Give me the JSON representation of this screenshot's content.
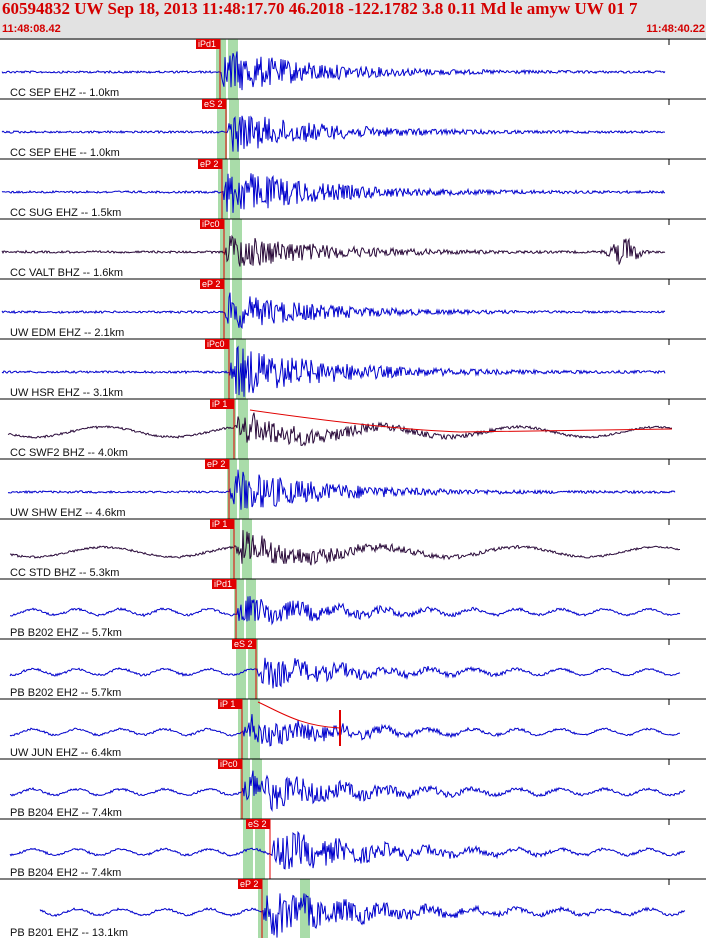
{
  "header": {
    "title": "60594832 UW Sep 18, 2013 11:48:17.70   46.2018 -122.1782  3.8 0.11 Md le amyw UW 01   7",
    "start_time": "11:48:08.42",
    "end_time": "11:48:40.22"
  },
  "colors": {
    "header_bg": "#e2e2e2",
    "header_text": "#d40000",
    "trace_blue": "#0000cc",
    "trace_dark": "#2a0a3a",
    "pick_red": "#e00000",
    "window_green": "#a9dca9"
  },
  "channels": [
    {
      "label": "CC SEP EHZ -- 1.0km",
      "pick": "iPd1",
      "color": "blue"
    },
    {
      "label": "CC SEP EHE -- 1.0km",
      "pick": "eS 2",
      "color": "blue"
    },
    {
      "label": "CC SUG EHZ -- 1.5km",
      "pick": "eP 2",
      "color": "blue"
    },
    {
      "label": "CC VALT BHZ -- 1.6km",
      "pick": "iPc0",
      "color": "dark"
    },
    {
      "label": "UW EDM EHZ -- 2.1km",
      "pick": "eP 2",
      "color": "blue"
    },
    {
      "label": "UW HSR EHZ -- 3.1km",
      "pick": "iPc0",
      "color": "blue"
    },
    {
      "label": "CC SWF2 BHZ -- 4.0km",
      "pick": "iP 1",
      "color": "dark"
    },
    {
      "label": "UW SHW EHZ -- 4.6km",
      "pick": "eP 2",
      "color": "blue"
    },
    {
      "label": "CC STD BHZ -- 5.3km",
      "pick": "iP 1",
      "color": "dark"
    },
    {
      "label": "PB B202 EHZ -- 5.7km",
      "pick": "iPd1",
      "color": "blue"
    },
    {
      "label": "PB B202 EH2 -- 5.7km",
      "pick": "eS 2",
      "color": "blue"
    },
    {
      "label": "UW JUN EHZ -- 6.4km",
      "pick": "iP 1",
      "color": "blue"
    },
    {
      "label": "PB B204 EHZ -- 7.4km",
      "pick": "iPc0",
      "color": "blue"
    },
    {
      "label": "PB B204 EH2 -- 7.4km",
      "pick": "eS 2",
      "color": "blue"
    },
    {
      "label": "PB B201 EHZ -- 13.1km",
      "pick": "eP 2",
      "color": "blue"
    }
  ]
}
